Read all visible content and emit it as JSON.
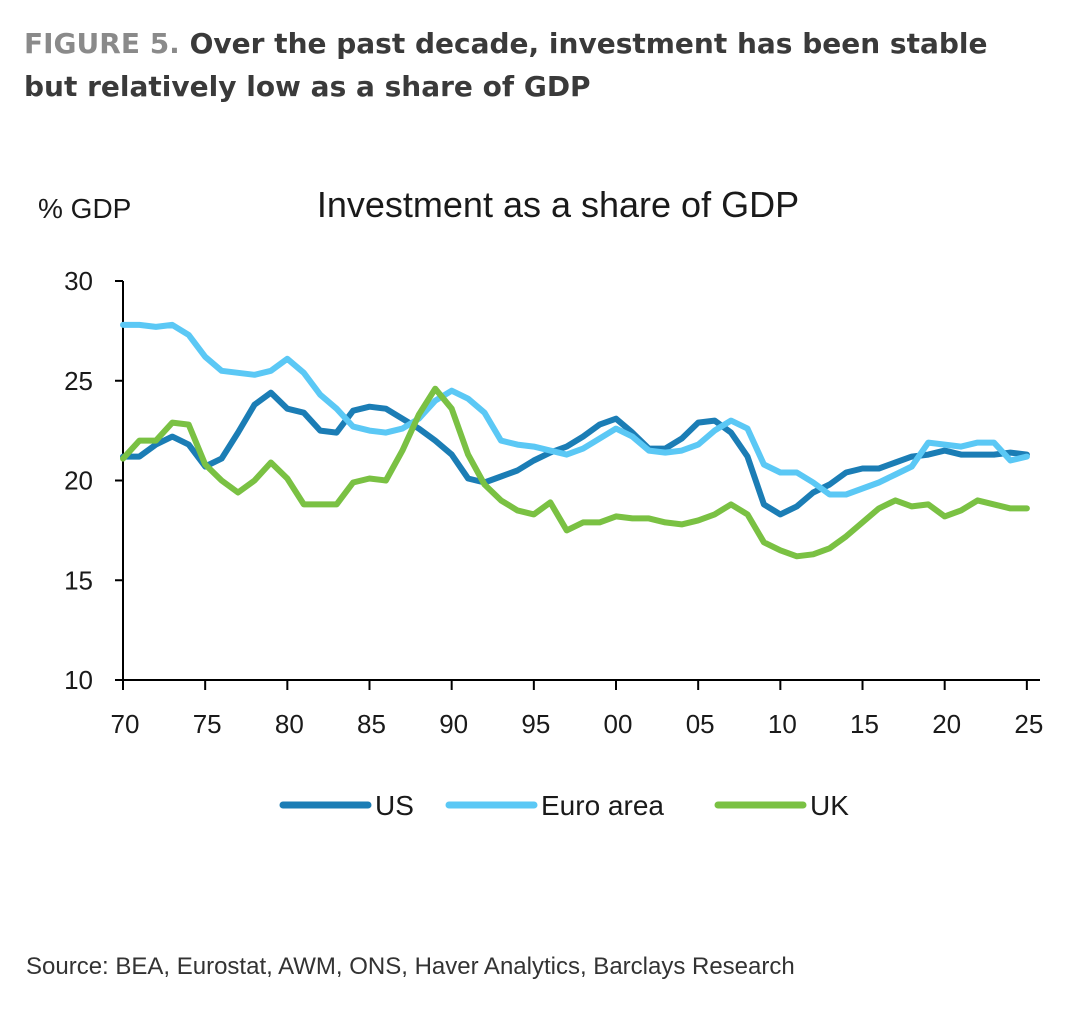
{
  "figure": {
    "label": "FIGURE 5.",
    "heading": "Over the past decade, investment has been stable but relatively low as a share of GDP"
  },
  "source": "Source: BEA, Eurostat, AWM, ONS, Haver Analytics, Barclays Research",
  "chart_data": {
    "type": "line",
    "title": "Investment as a share of GDP",
    "ylabel": "% GDP",
    "xlabel": "",
    "x": [
      1970,
      1971,
      1972,
      1973,
      1974,
      1975,
      1976,
      1977,
      1978,
      1979,
      1980,
      1981,
      1982,
      1983,
      1984,
      1985,
      1986,
      1987,
      1988,
      1989,
      1990,
      1991,
      1992,
      1993,
      1994,
      1995,
      1996,
      1997,
      1998,
      1999,
      2000,
      2001,
      2002,
      2003,
      2004,
      2005,
      2006,
      2007,
      2008,
      2009,
      2010,
      2011,
      2012,
      2013,
      2014,
      2015,
      2016,
      2017,
      2018,
      2019,
      2020,
      2021,
      2022,
      2023,
      2024,
      2025
    ],
    "xlim": [
      1970,
      2025.8
    ],
    "ylim": [
      10,
      30
    ],
    "yticks": [
      10,
      15,
      20,
      25,
      30
    ],
    "xticks": [
      1970,
      1975,
      1980,
      1985,
      1990,
      1995,
      2000,
      2005,
      2010,
      2015,
      2020,
      2025
    ],
    "xtick_labels": [
      "70",
      "75",
      "80",
      "85",
      "90",
      "95",
      "00",
      "05",
      "10",
      "15",
      "20",
      "25"
    ],
    "legend_position": "bottom",
    "series": [
      {
        "name": "US",
        "color": "#1b7db5",
        "values": [
          21.2,
          21.2,
          21.8,
          22.2,
          21.8,
          20.7,
          21.1,
          22.4,
          23.8,
          24.4,
          23.6,
          23.4,
          22.5,
          22.4,
          23.5,
          23.7,
          23.6,
          23.1,
          22.6,
          22.0,
          21.3,
          20.1,
          19.9,
          20.2,
          20.5,
          21.0,
          21.4,
          21.7,
          22.2,
          22.8,
          23.1,
          22.4,
          21.6,
          21.6,
          22.1,
          22.9,
          23.0,
          22.4,
          21.2,
          18.8,
          18.3,
          18.7,
          19.4,
          19.8,
          20.4,
          20.6,
          20.6,
          20.9,
          21.2,
          21.3,
          21.5,
          21.3,
          21.3,
          21.3,
          21.4,
          21.3
        ]
      },
      {
        "name": "Euro area",
        "color": "#5bc8f5",
        "values": [
          27.8,
          27.8,
          27.7,
          27.8,
          27.3,
          26.2,
          25.5,
          25.4,
          25.3,
          25.5,
          26.1,
          25.4,
          24.3,
          23.6,
          22.7,
          22.5,
          22.4,
          22.6,
          23.1,
          24.0,
          24.5,
          24.1,
          23.4,
          22.0,
          21.8,
          21.7,
          21.5,
          21.3,
          21.6,
          22.1,
          22.6,
          22.2,
          21.5,
          21.4,
          21.5,
          21.8,
          22.5,
          23.0,
          22.6,
          20.8,
          20.4,
          20.4,
          19.9,
          19.3,
          19.3,
          19.6,
          19.9,
          20.3,
          20.7,
          21.9,
          21.8,
          21.7,
          21.9,
          21.9,
          21.0,
          21.2
        ]
      },
      {
        "name": "UK",
        "color": "#7ac143",
        "values": [
          21.1,
          22.0,
          22.0,
          22.9,
          22.8,
          20.8,
          20.0,
          19.4,
          20.0,
          20.9,
          20.1,
          18.8,
          18.8,
          18.8,
          19.9,
          20.1,
          20.0,
          21.5,
          23.3,
          24.6,
          23.6,
          21.3,
          19.8,
          19.0,
          18.5,
          18.3,
          18.9,
          17.5,
          17.9,
          17.9,
          18.2,
          18.1,
          18.1,
          17.9,
          17.8,
          18.0,
          18.3,
          18.8,
          18.3,
          16.9,
          16.5,
          16.2,
          16.3,
          16.6,
          17.2,
          17.9,
          18.6,
          19.0,
          18.7,
          18.8,
          18.2,
          18.5,
          19.0,
          18.8,
          18.6,
          18.6
        ]
      }
    ]
  }
}
